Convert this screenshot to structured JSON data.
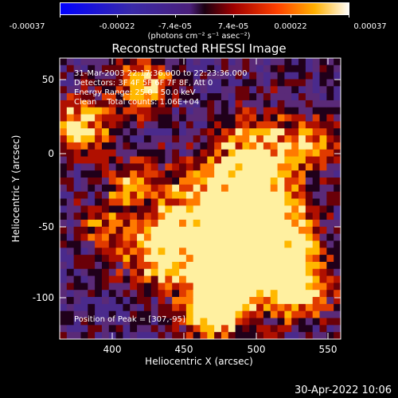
{
  "colorbar": {
    "ticks": [
      "-0.00037",
      "-0.00022",
      "-7.4e-05",
      "7.4e-05",
      "0.00022",
      "0.00037"
    ],
    "unit": "(photons cm⁻² s⁻¹ asec⁻²)"
  },
  "title": "Reconstructed RHESSI Image",
  "info": {
    "line1": "31-Mar-2003 22:17:36.000 to 22:23:36.000",
    "line2": "Detectors: 3F 4F 5F 6F 7F 8F, Att 0",
    "line3": "Energy Range: 25.0 - 50.0 keV",
    "line4": "Clean    Total counts: 1.06E+04",
    "peak": "Position of Peak = [307,-95]"
  },
  "axes": {
    "xlabel": "Heliocentric X (arcsec)",
    "ylabel": "Heliocentric Y (arcsec)",
    "xticks": [
      "400",
      "450",
      "500",
      "550"
    ],
    "yticks": [
      "50",
      "0",
      "-50",
      "-100"
    ]
  },
  "footer": "30-Apr-2022 10:06",
  "chart_data": {
    "type": "heatmap",
    "title": "Reconstructed RHESSI Image",
    "xlabel": "Heliocentric X (arcsec)",
    "ylabel": "Heliocentric Y (arcsec)",
    "xlim": [
      364,
      552
    ],
    "ylim": [
      -128,
      66
    ],
    "zlim": [
      -0.00037,
      0.00037
    ],
    "colormap": "red-temperature",
    "peak_position": [
      307,
      -95
    ]
  },
  "colors": {
    "background": "#000000",
    "text": "#ffffff"
  }
}
